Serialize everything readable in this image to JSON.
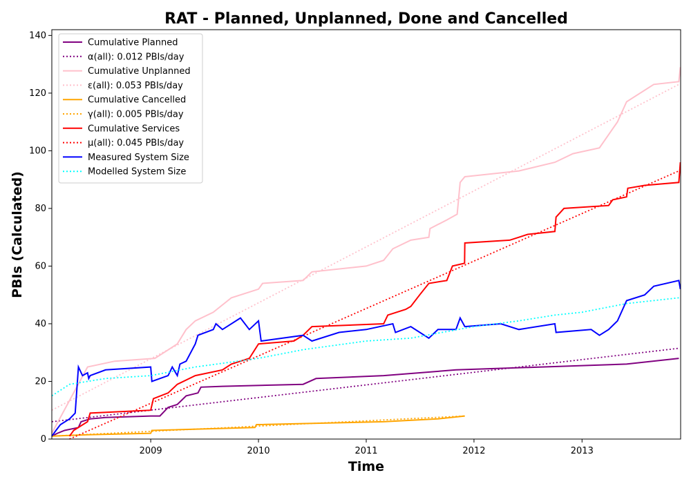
{
  "chart_data": {
    "type": "line",
    "title": "RAT - Planned, Unplanned, Done  and Cancelled",
    "xlabel": "Time",
    "ylabel": "PBIs (Calculated)",
    "xlim": [
      "2008-02-01",
      "2013-12-01"
    ],
    "ylim": [
      0,
      142
    ],
    "x_ticks": [
      "2009",
      "2010",
      "2011",
      "2012",
      "2013"
    ],
    "y_ticks": [
      0,
      20,
      40,
      60,
      80,
      100,
      120,
      140
    ],
    "grid": false,
    "legend_position": "upper-left",
    "series": [
      {
        "name": "Cumulative Planned",
        "color": "#800080",
        "style": "solid",
        "points": [
          [
            "2008-02-01",
            1
          ],
          [
            "2008-02-20",
            2
          ],
          [
            "2008-03-15",
            3
          ],
          [
            "2008-05-01",
            4
          ],
          [
            "2008-05-10",
            6
          ],
          [
            "2008-06-10",
            7
          ],
          [
            "2008-08-01",
            7.5
          ],
          [
            "2009-01-01",
            8
          ],
          [
            "2009-02-01",
            8
          ],
          [
            "2009-03-01",
            11
          ],
          [
            "2009-04-01",
            12
          ],
          [
            "2009-05-01",
            15
          ],
          [
            "2009-06-10",
            16
          ],
          [
            "2009-06-20",
            18
          ],
          [
            "2009-09-01",
            18.3
          ],
          [
            "2010-06-01",
            19
          ],
          [
            "2010-07-15",
            21
          ],
          [
            "2011-03-01",
            22
          ],
          [
            "2011-11-01",
            24
          ],
          [
            "2013-06-01",
            26
          ],
          [
            "2013-11-25",
            28
          ]
        ]
      },
      {
        "name": "α(all): 0.012 PBIs/day",
        "color": "#800080",
        "style": "dotted",
        "points": [
          [
            "2008-02-01",
            6
          ],
          [
            "2013-11-25",
            31.5
          ]
        ]
      },
      {
        "name": "Cumulative Unplanned",
        "color": "#ffc0cb",
        "style": "solid",
        "points": [
          [
            "2008-02-01",
            2
          ],
          [
            "2008-06-01",
            25
          ],
          [
            "2008-09-01",
            27
          ],
          [
            "2009-01-15",
            28
          ],
          [
            "2009-02-15",
            30
          ],
          [
            "2009-04-01",
            33
          ],
          [
            "2009-05-01",
            38
          ],
          [
            "2009-06-01",
            41
          ],
          [
            "2009-08-01",
            44
          ],
          [
            "2009-10-01",
            49
          ],
          [
            "2010-01-01",
            52
          ],
          [
            "2010-01-15",
            54
          ],
          [
            "2010-06-01",
            55
          ],
          [
            "2010-07-01",
            58
          ],
          [
            "2011-01-01",
            60
          ],
          [
            "2011-03-01",
            62
          ],
          [
            "2011-04-01",
            66
          ],
          [
            "2011-06-01",
            69
          ],
          [
            "2011-08-01",
            70
          ],
          [
            "2011-08-05",
            73
          ],
          [
            "2011-10-01",
            76
          ],
          [
            "2011-11-05",
            78
          ],
          [
            "2011-11-15",
            89
          ],
          [
            "2011-12-01",
            91
          ],
          [
            "2012-06-01",
            93
          ],
          [
            "2012-10-01",
            96
          ],
          [
            "2012-12-01",
            99
          ],
          [
            "2013-03-01",
            101
          ],
          [
            "2013-05-01",
            110
          ],
          [
            "2013-06-01",
            117
          ],
          [
            "2013-09-01",
            123
          ],
          [
            "2013-11-25",
            124
          ],
          [
            "2013-11-30",
            129
          ]
        ]
      },
      {
        "name": "ε(all): 0.053 PBIs/day",
        "color": "#ffc0cb",
        "style": "dotted",
        "points": [
          [
            "2008-02-01",
            10
          ],
          [
            "2013-11-25",
            123
          ]
        ]
      },
      {
        "name": "Cumulative Cancelled",
        "color": "#ffa500",
        "style": "solid",
        "points": [
          [
            "2008-02-01",
            1
          ],
          [
            "2008-06-01",
            1.5
          ],
          [
            "2009-01-01",
            2
          ],
          [
            "2009-01-05",
            3
          ],
          [
            "2009-12-20",
            4
          ],
          [
            "2009-12-25",
            5
          ],
          [
            "2011-03-01",
            6
          ],
          [
            "2011-09-01",
            7
          ],
          [
            "2011-12-01",
            8
          ]
        ]
      },
      {
        "name": "γ(all): 0.005 PBIs/day",
        "color": "#ffa500",
        "style": "dotted",
        "points": [
          [
            "2008-02-01",
            1
          ],
          [
            "2011-12-01",
            8
          ]
        ]
      },
      {
        "name": "Cumulative Services",
        "color": "#ff0000",
        "style": "solid",
        "points": [
          [
            "2008-04-01",
            1
          ],
          [
            "2008-04-15",
            3
          ],
          [
            "2008-06-01",
            6
          ],
          [
            "2008-06-10",
            9
          ],
          [
            "2009-01-01",
            10
          ],
          [
            "2009-01-10",
            14
          ],
          [
            "2009-03-01",
            16
          ],
          [
            "2009-04-01",
            19
          ],
          [
            "2009-06-01",
            22
          ],
          [
            "2009-09-01",
            24
          ],
          [
            "2009-10-01",
            26
          ],
          [
            "2009-12-01",
            28
          ],
          [
            "2010-01-01",
            33
          ],
          [
            "2010-05-01",
            34
          ],
          [
            "2010-06-01",
            36
          ],
          [
            "2010-07-01",
            39
          ],
          [
            "2011-03-01",
            40
          ],
          [
            "2011-03-15",
            43
          ],
          [
            "2011-05-15",
            45
          ],
          [
            "2011-06-01",
            46
          ],
          [
            "2011-07-01",
            50
          ],
          [
            "2011-08-01",
            54
          ],
          [
            "2011-10-01",
            55
          ],
          [
            "2011-10-20",
            60
          ],
          [
            "2011-11-30",
            61
          ],
          [
            "2011-12-01",
            68
          ],
          [
            "2012-05-01",
            69
          ],
          [
            "2012-06-01",
            70
          ],
          [
            "2012-07-01",
            71
          ],
          [
            "2012-10-01",
            72
          ],
          [
            "2012-10-05",
            77
          ],
          [
            "2012-11-01",
            80
          ],
          [
            "2013-04-01",
            81
          ],
          [
            "2013-04-15",
            83
          ],
          [
            "2013-06-01",
            84
          ],
          [
            "2013-06-05",
            87
          ],
          [
            "2013-08-01",
            88
          ],
          [
            "2013-11-25",
            89
          ],
          [
            "2013-11-30",
            96
          ]
        ]
      },
      {
        "name": "μ(all): 0.045 PBIs/day",
        "color": "#ff0000",
        "style": "dotted",
        "points": [
          [
            "2008-04-01",
            0
          ],
          [
            "2013-11-25",
            93
          ]
        ]
      },
      {
        "name": "Measured System Size",
        "color": "#0000ff",
        "style": "solid",
        "points": [
          [
            "2008-02-01",
            1
          ],
          [
            "2008-02-15",
            3
          ],
          [
            "2008-03-01",
            5
          ],
          [
            "2008-04-01",
            7
          ],
          [
            "2008-04-20",
            9
          ],
          [
            "2008-05-01",
            25
          ],
          [
            "2008-05-15",
            22
          ],
          [
            "2008-06-01",
            23
          ],
          [
            "2008-06-05",
            21
          ],
          [
            "2008-06-10",
            22
          ],
          [
            "2008-08-01",
            24
          ],
          [
            "2009-01-01",
            25
          ],
          [
            "2009-01-05",
            20
          ],
          [
            "2009-03-01",
            22
          ],
          [
            "2009-03-15",
            25
          ],
          [
            "2009-04-01",
            22
          ],
          [
            "2009-04-10",
            26
          ],
          [
            "2009-05-01",
            27
          ],
          [
            "2009-06-01",
            33
          ],
          [
            "2009-06-10",
            36
          ],
          [
            "2009-08-01",
            38
          ],
          [
            "2009-08-10",
            40
          ],
          [
            "2009-09-01",
            38
          ],
          [
            "2009-11-01",
            42
          ],
          [
            "2009-12-01",
            38
          ],
          [
            "2010-01-01",
            41
          ],
          [
            "2010-01-10",
            34
          ],
          [
            "2010-06-01",
            36
          ],
          [
            "2010-07-01",
            34
          ],
          [
            "2010-10-01",
            37
          ],
          [
            "2011-01-01",
            38
          ],
          [
            "2011-04-01",
            40
          ],
          [
            "2011-04-10",
            37
          ],
          [
            "2011-06-01",
            39
          ],
          [
            "2011-08-01",
            35
          ],
          [
            "2011-09-01",
            38
          ],
          [
            "2011-11-01",
            38
          ],
          [
            "2011-11-15",
            42
          ],
          [
            "2011-12-01",
            39
          ],
          [
            "2012-04-01",
            40
          ],
          [
            "2012-06-01",
            38
          ],
          [
            "2012-10-01",
            40
          ],
          [
            "2012-10-05",
            37
          ],
          [
            "2013-02-01",
            38
          ],
          [
            "2013-03-01",
            36
          ],
          [
            "2013-04-01",
            38
          ],
          [
            "2013-05-01",
            41
          ],
          [
            "2013-06-01",
            48
          ],
          [
            "2013-08-01",
            50
          ],
          [
            "2013-09-01",
            53
          ],
          [
            "2013-11-25",
            55
          ],
          [
            "2013-11-30",
            52
          ]
        ]
      },
      {
        "name": "Modelled System Size",
        "color": "#00ffff",
        "style": "dotted",
        "points": [
          [
            "2008-02-01",
            15
          ],
          [
            "2008-04-01",
            19
          ],
          [
            "2008-08-01",
            21
          ],
          [
            "2009-01-01",
            22
          ],
          [
            "2009-06-01",
            25
          ],
          [
            "2010-01-01",
            28
          ],
          [
            "2010-06-01",
            31
          ],
          [
            "2011-01-01",
            34
          ],
          [
            "2011-06-01",
            35
          ],
          [
            "2012-01-01",
            39
          ],
          [
            "2012-06-01",
            41
          ],
          [
            "2012-10-01",
            43
          ],
          [
            "2013-01-01",
            44
          ],
          [
            "2013-06-01",
            47
          ],
          [
            "2013-11-25",
            49
          ]
        ]
      }
    ]
  }
}
